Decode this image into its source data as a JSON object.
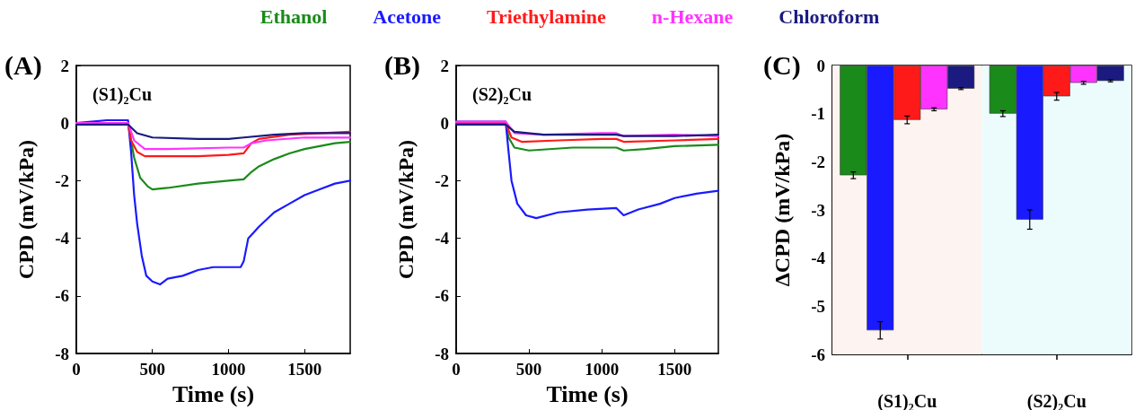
{
  "chart_data": [
    {
      "type": "line",
      "title": "(A)",
      "xlabel": "Time (s)",
      "ylabel": "CPD (mV/kPa)",
      "annotations": [
        "(S1)₂Cu"
      ],
      "xlim": [
        0,
        1800
      ],
      "xticks": [
        0,
        500,
        1000,
        1500
      ],
      "ylim": [
        -8,
        2
      ],
      "yticks": [
        -8,
        -6,
        -4,
        -2,
        0,
        2
      ],
      "legend": "top",
      "marker": "none",
      "line_style": "solid",
      "grid": false,
      "series": [
        {
          "name": "Ethanol",
          "color": "#1a8a1a",
          "x": [
            0,
            340,
            380,
            420,
            470,
            500,
            600,
            800,
            1000,
            1100,
            1150,
            1200,
            1300,
            1400,
            1500,
            1600,
            1700,
            1800
          ],
          "values": [
            0,
            0,
            -1.2,
            -1.9,
            -2.2,
            -2.3,
            -2.25,
            -2.1,
            -2.0,
            -1.95,
            -1.7,
            -1.5,
            -1.25,
            -1.05,
            -0.9,
            -0.8,
            -0.7,
            -0.65
          ]
        },
        {
          "name": "Acetone",
          "color": "#1a1aff",
          "x": [
            0,
            100,
            200,
            340,
            360,
            380,
            400,
            430,
            460,
            500,
            550,
            600,
            700,
            800,
            900,
            1000,
            1080,
            1100,
            1130,
            1200,
            1300,
            1400,
            1500,
            1600,
            1700,
            1800
          ],
          "values": [
            0,
            0.05,
            0.1,
            0.1,
            -1,
            -2.5,
            -3.5,
            -4.6,
            -5.3,
            -5.5,
            -5.6,
            -5.4,
            -5.3,
            -5.1,
            -5.0,
            -5.0,
            -5.0,
            -4.8,
            -4.0,
            -3.6,
            -3.1,
            -2.8,
            -2.5,
            -2.3,
            -2.1,
            -2.0
          ]
        },
        {
          "name": "Triethylamine",
          "color": "#ff1a1a",
          "x": [
            0,
            340,
            360,
            400,
            450,
            600,
            800,
            1000,
            1100,
            1150,
            1200,
            1400,
            1800
          ],
          "values": [
            0,
            0,
            -0.6,
            -1.0,
            -1.15,
            -1.15,
            -1.15,
            -1.1,
            -1.05,
            -0.7,
            -0.55,
            -0.4,
            -0.3
          ]
        },
        {
          "name": "n-Hexane",
          "color": "#ff33ff",
          "x": [
            0,
            340,
            380,
            450,
            600,
            1000,
            1100,
            1150,
            1250,
            1500,
            1800
          ],
          "values": [
            0,
            0,
            -0.6,
            -0.9,
            -0.9,
            -0.85,
            -0.85,
            -0.7,
            -0.6,
            -0.5,
            -0.5
          ]
        },
        {
          "name": "Chloroform",
          "color": "#1a1a80",
          "x": [
            0,
            340,
            400,
            500,
            800,
            1000,
            1100,
            1300,
            1500,
            1800
          ],
          "values": [
            -0.05,
            -0.05,
            -0.35,
            -0.5,
            -0.55,
            -0.55,
            -0.5,
            -0.4,
            -0.35,
            -0.35
          ]
        }
      ]
    },
    {
      "type": "line",
      "title": "(B)",
      "xlabel": "Time (s)",
      "ylabel": "CPD (mV/kPa)",
      "annotations": [
        "(S2)₂Cu"
      ],
      "xlim": [
        0,
        1800
      ],
      "xticks": [
        0,
        500,
        1000,
        1500
      ],
      "ylim": [
        -8,
        2
      ],
      "yticks": [
        -8,
        -6,
        -4,
        -2,
        0,
        2
      ],
      "marker": "none",
      "line_style": "solid",
      "grid": false,
      "series": [
        {
          "color": "#1a8a1a",
          "x": [
            0,
            340,
            360,
            400,
            500,
            800,
            1000,
            1100,
            1150,
            1300,
            1500,
            1800
          ],
          "values": [
            0,
            0,
            -0.5,
            -0.85,
            -0.95,
            -0.85,
            -0.85,
            -0.85,
            -0.95,
            -0.9,
            -0.8,
            -0.75
          ]
        },
        {
          "color": "#1a1aff",
          "x": [
            0,
            340,
            360,
            380,
            420,
            480,
            550,
            700,
            900,
            1100,
            1150,
            1250,
            1400,
            1500,
            1650,
            1800
          ],
          "values": [
            0.05,
            0.05,
            -1,
            -2,
            -2.8,
            -3.2,
            -3.3,
            -3.1,
            -3.0,
            -2.95,
            -3.2,
            -3.0,
            -2.8,
            -2.6,
            -2.45,
            -2.35
          ]
        },
        {
          "color": "#ff1a1a",
          "x": [
            0,
            340,
            380,
            450,
            700,
            1000,
            1100,
            1150,
            1500,
            1800
          ],
          "values": [
            0,
            0,
            -0.5,
            -0.65,
            -0.6,
            -0.55,
            -0.55,
            -0.65,
            -0.6,
            -0.55
          ]
        },
        {
          "color": "#ff33ff",
          "x": [
            0,
            340,
            400,
            600,
            1000,
            1100,
            1150,
            1500,
            1800
          ],
          "values": [
            0.05,
            0.05,
            -0.35,
            -0.4,
            -0.35,
            -0.35,
            -0.45,
            -0.4,
            -0.45
          ]
        },
        {
          "color": "#1a1a80",
          "x": [
            0,
            340,
            400,
            600,
            1000,
            1100,
            1150,
            1500,
            1800
          ],
          "values": [
            -0.05,
            -0.05,
            -0.3,
            -0.4,
            -0.4,
            -0.4,
            -0.45,
            -0.45,
            -0.4
          ]
        }
      ]
    },
    {
      "type": "bar",
      "title": "(C)",
      "ylabel": "ΔCPD (mV/kPa)",
      "categories": [
        "(S1)₂Cu",
        "(S2)₂Cu"
      ],
      "ylim": [
        -6,
        0
      ],
      "yticks": [
        -6,
        -5,
        -4,
        -3,
        -2,
        -1,
        0
      ],
      "grid": false,
      "bands": [
        {
          "axis": "x",
          "from": "(S1)₂Cu",
          "to": "(S1)₂Cu",
          "color": "#fdf3f0"
        },
        {
          "axis": "x",
          "from": "(S2)₂Cu",
          "to": "(S2)₂Cu",
          "color": "#ecfcfc"
        }
      ],
      "series": [
        {
          "color": "#1a8a1a",
          "values": [
            -2.28,
            -1.0
          ],
          "errors": [
            0.07,
            0.06
          ]
        },
        {
          "color": "#1a1aff",
          "values": [
            -5.5,
            -3.2
          ],
          "errors": [
            0.18,
            0.2
          ]
        },
        {
          "color": "#ff1a1a",
          "values": [
            -1.13,
            -0.64
          ],
          "errors": [
            0.08,
            0.08
          ]
        },
        {
          "color": "#ff33ff",
          "values": [
            -0.91,
            -0.36
          ],
          "errors": [
            0.03,
            0.03
          ]
        },
        {
          "color": "#1a1a80",
          "values": [
            -0.48,
            -0.32
          ],
          "errors": [
            0.02,
            0.02
          ]
        }
      ]
    }
  ]
}
